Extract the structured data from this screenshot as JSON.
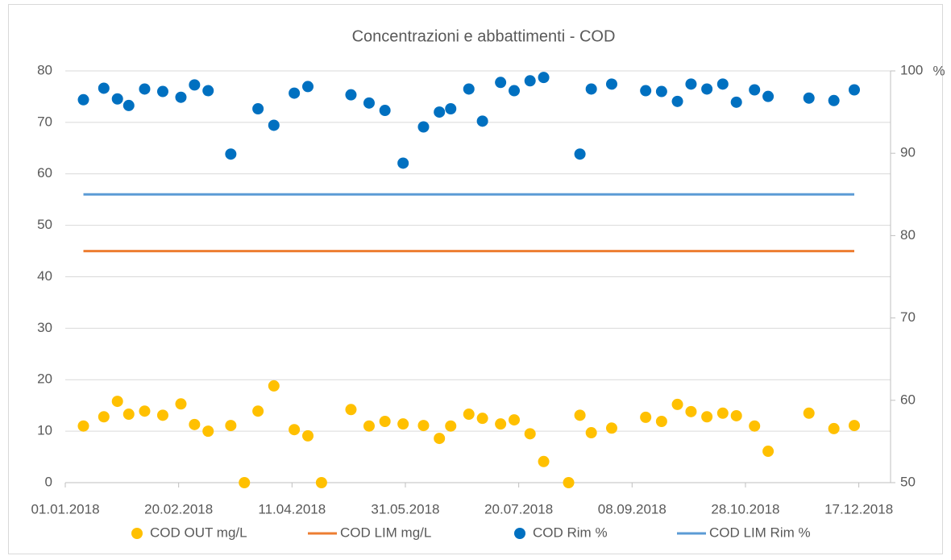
{
  "chart_data": {
    "type": "combo",
    "title": "Concentrazioni e abbattimenti - COD",
    "y2label": "%",
    "xlim": [
      "01.01.2018",
      "31.12.2018"
    ],
    "xticks": [
      "01.01.2018",
      "20.02.2018",
      "11.04.2018",
      "31.05.2018",
      "20.07.2018",
      "08.09.2018",
      "28.10.2018",
      "17.12.2018"
    ],
    "ylim": [
      0,
      80
    ],
    "yticks": [
      0,
      10,
      20,
      30,
      40,
      50,
      60,
      70,
      80
    ],
    "y2lim": [
      50,
      100
    ],
    "y2ticks": [
      50,
      60,
      70,
      80,
      90,
      100
    ],
    "grid": true,
    "legend": "bottom",
    "series": [
      {
        "name": "COD OUT mg/L",
        "color": "#ffc000",
        "style": "marker",
        "axis": "y",
        "x": [
          "09.01.2018",
          "18.01.2018",
          "24.01.2018",
          "29.01.2018",
          "05.02.2018",
          "13.02.2018",
          "21.02.2018",
          "27.02.2018",
          "05.03.2018",
          "15.03.2018",
          "21.03.2018",
          "27.03.2018",
          "03.04.2018",
          "12.04.2018",
          "18.04.2018",
          "24.04.2018",
          "07.05.2018",
          "15.05.2018",
          "22.05.2018",
          "30.05.2018",
          "08.06.2018",
          "15.06.2018",
          "20.06.2018",
          "28.06.2018",
          "04.07.2018",
          "12.07.2018",
          "18.07.2018",
          "25.07.2018",
          "31.07.2018",
          "11.08.2018",
          "16.08.2018",
          "21.08.2018",
          "30.08.2018",
          "14.09.2018",
          "21.09.2018",
          "28.09.2018",
          "04.10.2018",
          "11.10.2018",
          "18.10.2018",
          "24.10.2018",
          "01.11.2018",
          "07.11.2018",
          "25.11.2018",
          "06.12.2018",
          "15.12.2018"
        ],
        "values": [
          11.0,
          12.8,
          15.8,
          13.3,
          13.9,
          13.1,
          15.3,
          11.3,
          10.0,
          11.1,
          0,
          13.9,
          18.8,
          10.3,
          9.1,
          0,
          14.2,
          11.0,
          11.9,
          11.4,
          11.1,
          8.6,
          11.0,
          13.3,
          12.5,
          11.4,
          12.2,
          9.5,
          4.1,
          0,
          13.1,
          9.7,
          10.6,
          12.7,
          11.9,
          15.2,
          13.8,
          12.8,
          13.5,
          13.0,
          11.0,
          6.1,
          13.5,
          10.5,
          11.1
        ]
      },
      {
        "name": "COD LIM mg/L",
        "color": "#ed7d31",
        "style": "line",
        "axis": "y",
        "x": [
          "09.01.2018",
          "15.12.2018"
        ],
        "values": [
          45,
          45
        ]
      },
      {
        "name": "COD Rim %",
        "color": "#0070c0",
        "style": "marker",
        "axis": "y2",
        "x": [
          "09.01.2018",
          "18.01.2018",
          "24.01.2018",
          "29.01.2018",
          "05.02.2018",
          "13.02.2018",
          "21.02.2018",
          "27.02.2018",
          "05.03.2018",
          "15.03.2018",
          "27.03.2018",
          "03.04.2018",
          "12.04.2018",
          "18.04.2018",
          "07.05.2018",
          "15.05.2018",
          "22.05.2018",
          "30.05.2018",
          "08.06.2018",
          "15.06.2018",
          "20.06.2018",
          "28.06.2018",
          "04.07.2018",
          "12.07.2018",
          "18.07.2018",
          "25.07.2018",
          "31.07.2018",
          "16.08.2018",
          "21.08.2018",
          "30.08.2018",
          "14.09.2018",
          "21.09.2018",
          "28.09.2018",
          "04.10.2018",
          "11.10.2018",
          "18.10.2018",
          "24.10.2018",
          "01.11.2018",
          "07.11.2018",
          "25.11.2018",
          "06.12.2018",
          "15.12.2018"
        ],
        "values": [
          96.5,
          97.9,
          96.6,
          95.8,
          97.8,
          97.5,
          96.8,
          98.3,
          97.6,
          89.9,
          95.4,
          93.4,
          97.3,
          98.1,
          97.1,
          96.1,
          95.2,
          88.8,
          93.2,
          95.0,
          95.4,
          97.8,
          93.9,
          98.6,
          97.6,
          98.8,
          99.2,
          89.9,
          97.8,
          98.4,
          97.6,
          97.5,
          96.3,
          98.4,
          97.8,
          98.4,
          96.2,
          97.7,
          96.9,
          96.7,
          96.4,
          97.7
        ]
      },
      {
        "name": "COD LIM Rim %",
        "color": "#5b9bd5",
        "style": "line",
        "axis": "y2",
        "x": [
          "09.01.2018",
          "15.12.2018"
        ],
        "values": [
          85,
          85
        ]
      }
    ]
  }
}
